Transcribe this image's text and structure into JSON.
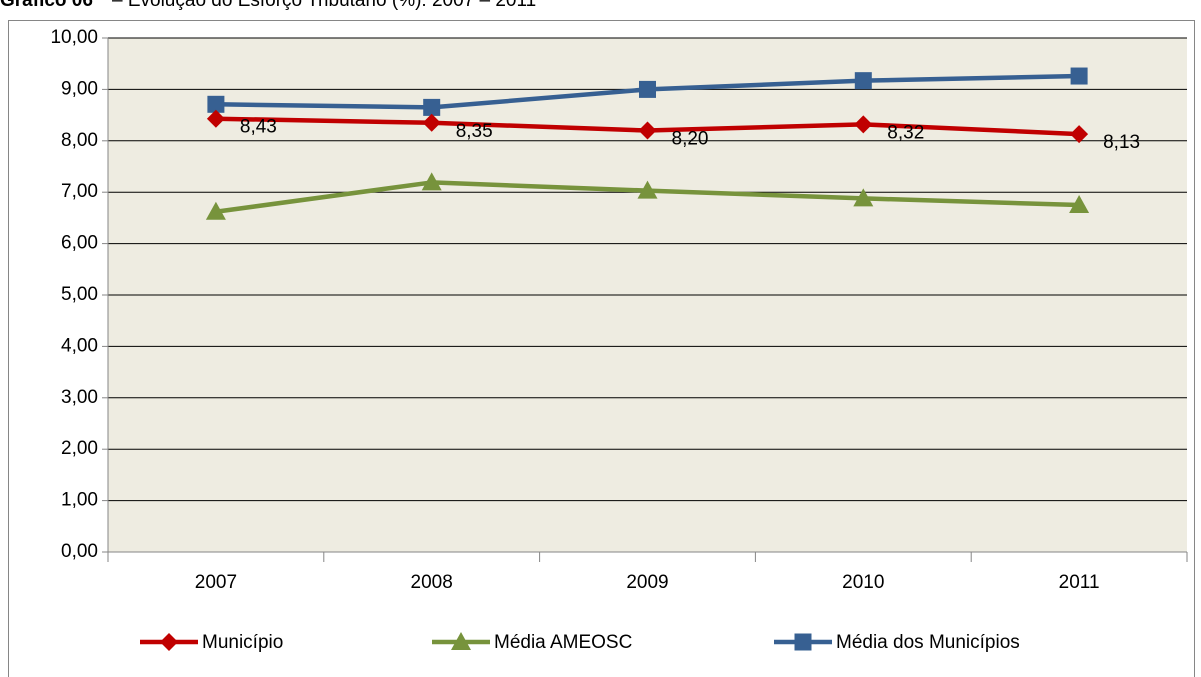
{
  "chart_data": {
    "type": "line",
    "title_number": "Gráfico 06",
    "title": "– Evolução do Esforço Tributário (%): 2007 – 2011",
    "categories": [
      "2007",
      "2008",
      "2009",
      "2010",
      "2011"
    ],
    "series": [
      {
        "name": "Município",
        "color": "#c00000",
        "marker": "diamond",
        "values": [
          8.43,
          8.35,
          8.2,
          8.32,
          8.13
        ],
        "value_labels": [
          "8,43",
          "8,35",
          "8,20",
          "8,32",
          "8,13"
        ]
      },
      {
        "name": "Média AMEOSC",
        "color": "#77933c",
        "marker": "triangle",
        "values": [
          6.62,
          7.19,
          7.03,
          6.88,
          6.75
        ]
      },
      {
        "name": "Média dos Municípios",
        "color": "#376092",
        "marker": "square",
        "values": [
          8.71,
          8.65,
          9.0,
          9.17,
          9.26
        ]
      }
    ],
    "ylim": [
      0,
      10
    ],
    "yticks": [
      {
        "value": 0,
        "label": "0,00"
      },
      {
        "value": 1,
        "label": "1,00"
      },
      {
        "value": 2,
        "label": "2,00"
      },
      {
        "value": 3,
        "label": "3,00"
      },
      {
        "value": 4,
        "label": "4,00"
      },
      {
        "value": 5,
        "label": "5,00"
      },
      {
        "value": 6,
        "label": "6,00"
      },
      {
        "value": 7,
        "label": "7,00"
      },
      {
        "value": 8,
        "label": "8,00"
      },
      {
        "value": 9,
        "label": "9,00"
      },
      {
        "value": 10,
        "label": "10,00"
      }
    ],
    "grid": true
  }
}
